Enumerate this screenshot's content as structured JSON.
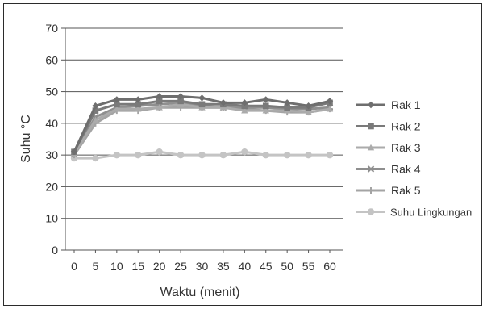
{
  "chart_data": {
    "type": "line",
    "xlabel": "Waktu (menit)",
    "ylabel": "Suhu °C",
    "x": [
      0,
      5,
      10,
      15,
      20,
      25,
      30,
      35,
      40,
      45,
      50,
      55,
      60
    ],
    "ylim": [
      0,
      70
    ],
    "yticks": [
      0,
      10,
      20,
      30,
      40,
      50,
      60,
      70
    ],
    "grid": true,
    "legend_position": "right",
    "series": [
      {
        "name": "Rak 1",
        "marker": "diamond",
        "color": "#6e6e6e",
        "values": [
          31,
          45.5,
          47.5,
          47.5,
          48.5,
          48.5,
          48,
          46.5,
          46.5,
          47.5,
          46.5,
          45.5,
          47
        ]
      },
      {
        "name": "Rak 2",
        "marker": "square",
        "color": "#7a7a7a",
        "values": [
          31,
          44,
          46,
          46,
          47,
          47,
          46,
          46,
          45.5,
          45.5,
          45,
          45,
          46.5
        ]
      },
      {
        "name": "Rak 3",
        "marker": "triangle",
        "color": "#ababab",
        "values": [
          30.5,
          41,
          44.5,
          44.5,
          45,
          46,
          45,
          45,
          44,
          44,
          44,
          43.5,
          44.5
        ]
      },
      {
        "name": "Rak 4",
        "marker": "x",
        "color": "#8f8f8f",
        "values": [
          30.5,
          42,
          45,
          45.5,
          46,
          46.5,
          45.5,
          45,
          45,
          45,
          44.5,
          44.5,
          45
        ]
      },
      {
        "name": "Rak 5",
        "marker": "plus",
        "color": "#a4a4a4",
        "values": [
          30,
          40,
          44,
          44,
          45,
          45,
          45,
          45,
          44.5,
          44,
          43.5,
          43.5,
          44.5
        ]
      },
      {
        "name": "Suhu Lingkungan",
        "marker": "circle",
        "color": "#c4c4c4",
        "values": [
          29,
          29,
          30,
          30,
          31,
          30,
          30,
          30,
          31,
          30,
          30,
          30,
          30
        ]
      }
    ]
  }
}
